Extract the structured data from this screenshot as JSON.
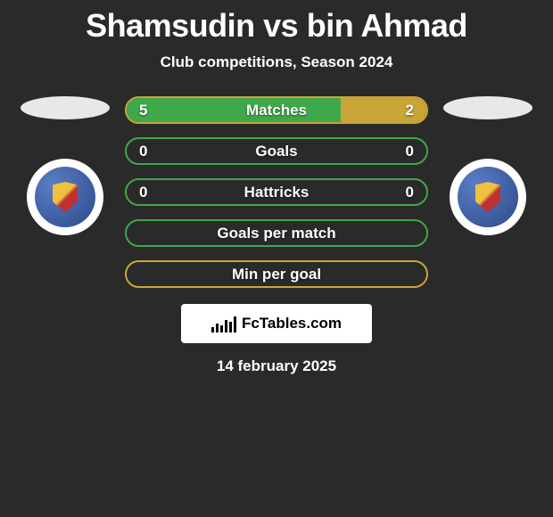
{
  "title": "Shamsudin vs bin Ahmad",
  "subtitle": "Club competitions, Season 2024",
  "date": "14 february 2025",
  "brand": "FcTables.com",
  "colors": {
    "green_border": "#3fa84a",
    "green_fill": "#3fa84a",
    "yellow_border": "#c9a537",
    "yellow_fill": "#c9a537",
    "background": "#2a2a2a",
    "text": "#ffffff"
  },
  "players": {
    "left": {
      "badge_color": "#3a5da8"
    },
    "right": {
      "badge_color": "#3a5da8"
    }
  },
  "stats": [
    {
      "label": "Matches",
      "left_val": "5",
      "right_val": "2",
      "left_pct": 71.4,
      "right_pct": 28.6,
      "left_color": "#3fa84a",
      "right_color": "#c9a537",
      "border_color": "#c9a537"
    },
    {
      "label": "Goals",
      "left_val": "0",
      "right_val": "0",
      "left_pct": 0,
      "right_pct": 0,
      "left_color": "#3fa84a",
      "right_color": "#c9a537",
      "border_color": "#3fa84a"
    },
    {
      "label": "Hattricks",
      "left_val": "0",
      "right_val": "0",
      "left_pct": 0,
      "right_pct": 0,
      "left_color": "#3fa84a",
      "right_color": "#c9a537",
      "border_color": "#3fa84a"
    },
    {
      "label": "Goals per match",
      "left_val": "",
      "right_val": "",
      "left_pct": 0,
      "right_pct": 0,
      "left_color": "#3fa84a",
      "right_color": "#c9a537",
      "border_color": "#3fa84a"
    },
    {
      "label": "Min per goal",
      "left_val": "",
      "right_val": "",
      "left_pct": 0,
      "right_pct": 0,
      "left_color": "#3fa84a",
      "right_color": "#c9a537",
      "border_color": "#c9a537"
    }
  ]
}
